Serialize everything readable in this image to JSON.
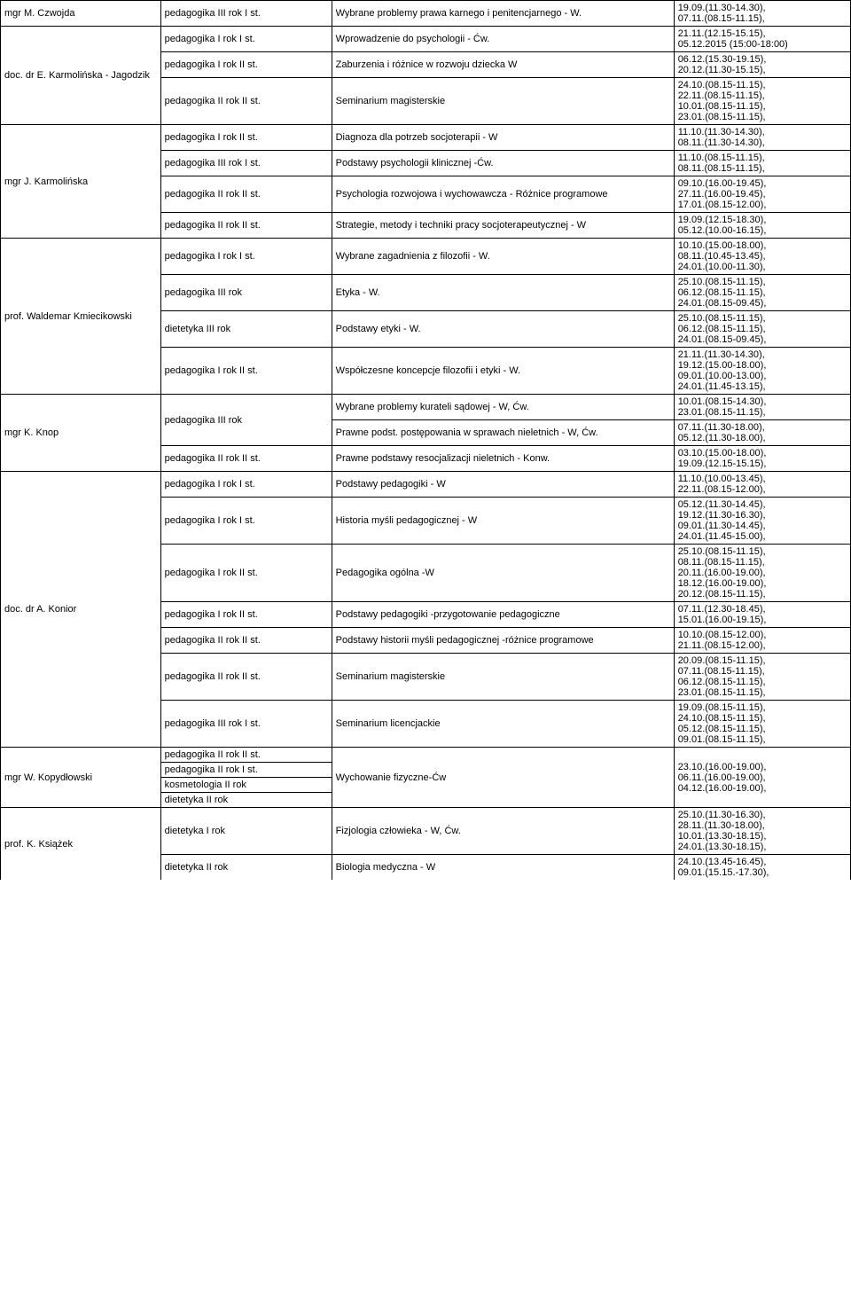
{
  "rows": [
    {
      "teacher": "mgr M. Czwojda",
      "teacherRowspan": 1,
      "program": "pedagogika III rok I st.",
      "subject": "Wybrane problemy prawa karnego i penitencjarnego - W.",
      "dates": "19.09.(11.30-14.30), 07.11.(08.15-11.15),"
    },
    {
      "teacher": "doc. dr E. Karmolińska - Jagodzik",
      "teacherRowspan": 3,
      "program": "pedagogika I rok I st.",
      "subject": "Wprowadzenie do psychologii - Ćw.",
      "dates": "21.11.(12.15-15.15), 05.12.2015 (15:00-18:00)"
    },
    {
      "program": "pedagogika I rok  II st.",
      "subject": "Zaburzenia i różnice w rozwoju dziecka W",
      "dates": "06.12.(15.30-19.15), 20.12.(11.30-15.15),"
    },
    {
      "program": "pedagogika II rok II st.",
      "subject": "Seminarium magisterskie",
      "dates": "24.10.(08.15-11.15), 22.11.(08.15-11.15), 10.01.(08.15-11.15), 23.01.(08.15-11.15),"
    },
    {
      "teacher": "mgr J. Karmolińska",
      "teacherRowspan": 4,
      "program": "pedagogika I rok  II st.",
      "subject": "Diagnoza dla potrzeb socjoterapii - W",
      "dates": "11.10.(11.30-14.30), 08.11.(11.30-14.30),"
    },
    {
      "program": "pedagogika III rok  I st.",
      "subject": "Podstawy psychologii klinicznej -Ćw.",
      "dates": "11.10.(08.15-11.15), 08.11.(08.15-11.15),"
    },
    {
      "program": "pedagogika II rok II st.",
      "subject": "Psychologia rozwojowa i wychowawcza - Różnice programowe",
      "dates": "09.10.(16.00-19.45), 27.11.(16.00-19.45), 17.01.(08.15-12.00),"
    },
    {
      "program": "pedagogika II rok II st.",
      "subject": "Strategie, metody i techniki pracy socjoterapeutycznej - W",
      "dates": "19.09.(12.15-18.30), 05.12.(10.00-16.15),"
    },
    {
      "teacher": "prof. Waldemar Kmiecikowski",
      "teacherRowspan": 4,
      "program": "pedagogika I rok I st.",
      "subject": "Wybrane zagadnienia z filozofii - W.",
      "dates": "10.10.(15.00-18.00), 08.11.(10.45-13.45), 24.01.(10.00-11.30),"
    },
    {
      "program": "pedagogika III rok",
      "subject": "Etyka - W.",
      "dates": "25.10.(08.15-11.15), 06.12.(08.15-11.15), 24.01.(08.15-09.45),"
    },
    {
      "program": "dietetyka III rok",
      "subject": "Podstawy etyki - W.",
      "dates": "25.10.(08.15-11.15), 06.12.(08.15-11.15), 24.01.(08.15-09.45),"
    },
    {
      "program": "pedagogika I rok  II st.",
      "subject": "Współczesne koncepcje filozofii i etyki - W.",
      "dates": "21.11.(11.30-14.30), 19.12.(15.00-18.00), 09.01.(10.00-13.00), 24.01.(11.45-13.15),"
    },
    {
      "teacher": "mgr K. Knop",
      "teacherRowspan": 3,
      "program": "pedagogika III rok",
      "programRowspan": 2,
      "subject": "Wybrane problemy kurateli sądowej - W, Ćw.",
      "dates": "10.01.(08.15-14.30), 23.01.(08.15-11.15),"
    },
    {
      "subject": "Prawne podst. postępowania w sprawach nieletnich - W, Ćw.",
      "dates": "07.11.(11.30-18.00), 05.12.(11.30-18.00),"
    },
    {
      "program": "pedagogika II rok II st.",
      "subject": "Prawne podstawy resocjalizacji nieletnich - Konw.",
      "dates": "03.10.(15.00-18.00), 19.09.(12.15-15.15),"
    },
    {
      "teacher": "doc. dr A. Konior",
      "teacherRowspan": 7,
      "program": "pedagogika I rok I st.",
      "subject": "Podstawy pedagogiki - W",
      "dates": "11.10.(10.00-13.45), 22.11.(08.15-12.00),"
    },
    {
      "program": "pedagogika I rok I st.",
      "subject": "Historia myśli pedagogicznej - W",
      "dates": "05.12.(11.30-14.45), 19.12.(11.30-16.30), 09.01.(11.30-14.45), 24.01.(11.45-15.00),"
    },
    {
      "program": "pedagogika I rok II st.",
      "subject": "Pedagogika ogólna -W",
      "dates": "25.10.(08.15-11.15), 08.11.(08.15-11.15), 20.11.(16.00-19.00), 18.12.(16.00-19.00), 20.12.(08.15-11.15),"
    },
    {
      "program": "pedagogika I rok II st.",
      "subject": "Podstawy pedagogiki -przygotowanie pedagogiczne",
      "dates": "07.11.(12.30-18.45), 15.01.(16.00-19.15),"
    },
    {
      "program": "pedagogika II rok II st.",
      "subject": "Podstawy historii myśli pedagogicznej -różnice programowe",
      "dates": "10.10.(08.15-12.00), 21.11.(08.15-12.00),"
    },
    {
      "program": "pedagogika II rok II st.",
      "subject": "Seminarium magisterskie",
      "dates": "20.09.(08.15-11.15), 07.11.(08.15-11.15), 06.12.(08.15-11.15), 23.01.(08.15-11.15),"
    },
    {
      "program": "pedagogika III rok I st.",
      "subject": "Seminarium licencjackie",
      "dates": "19.09.(08.15-11.15), 24.10.(08.15-11.15), 05.12.(08.15-11.15), 09.01.(08.15-11.15),"
    },
    {
      "teacher": "mgr W. Kopydłowski",
      "teacherRowspan": 4,
      "program": "pedagogika II rok II st.",
      "subject": "Wychowanie fizyczne-Ćw",
      "subjectRowspan": 4,
      "dates": "23.10.(16.00-19.00), 06.11.(16.00-19.00), 04.12.(16.00-19.00),",
      "datesRowspan": 4
    },
    {
      "program": "pedagogika II rok I st."
    },
    {
      "program": "kosmetologia II rok"
    },
    {
      "program": "dietetyka II rok"
    },
    {
      "teacher": "prof. K. Książek",
      "teacherRowspan": 2,
      "teacherNoBottom": true,
      "program": "dietetyka I rok",
      "subject": "Fizjologia człowieka - W, Ćw.",
      "dates": "25.10.(11.30-16.30), 28.11.(11.30-18.00), 10.01.(13.30-18.15), 24.01.(13.30-18.15),"
    },
    {
      "program": "dietetyka II rok",
      "subject": "Biologia medyczna - W",
      "dates": "24.10.(13.45-16.45), 09.01.(15.15.-17.30),",
      "noBottom": true
    }
  ]
}
